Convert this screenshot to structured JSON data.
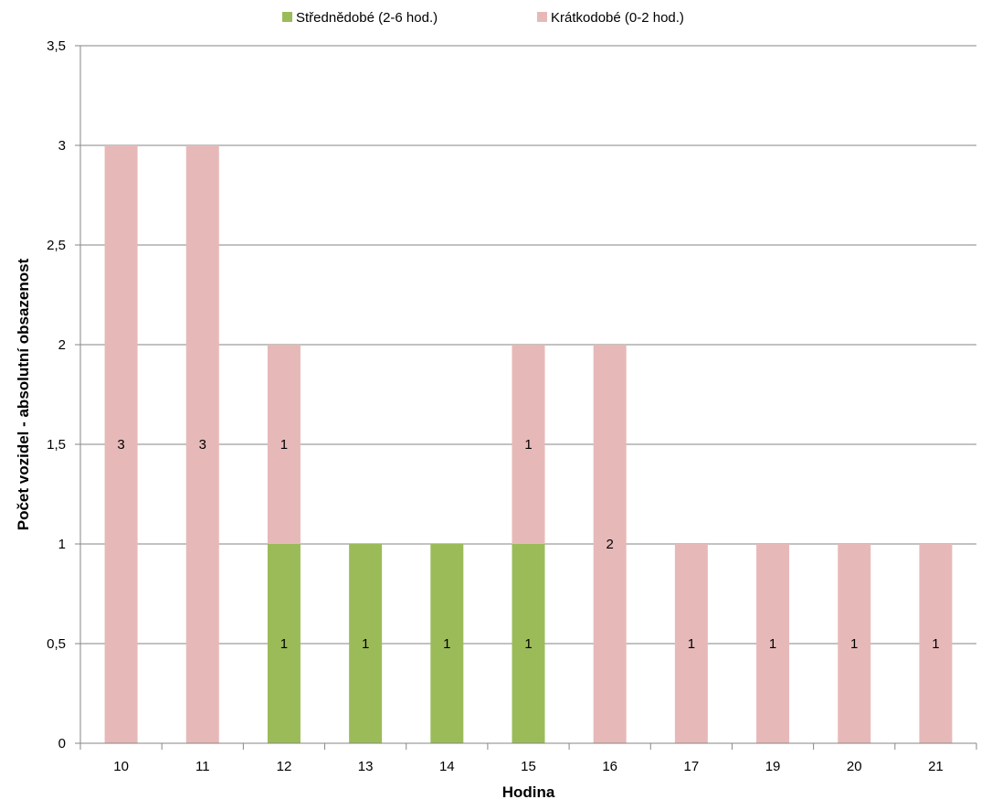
{
  "chart_data": {
    "type": "bar",
    "stacked": true,
    "categories": [
      "10",
      "11",
      "12",
      "13",
      "14",
      "15",
      "16",
      "17",
      "19",
      "20",
      "21"
    ],
    "series": [
      {
        "name": "Střednědobé (2-6 hod.)",
        "color": "#9bbb59",
        "values": [
          0,
          0,
          1,
          1,
          1,
          1,
          0,
          0,
          0,
          0,
          0
        ]
      },
      {
        "name": "Krátkodobé (0-2 hod.)",
        "color": "#e6b9b8",
        "values": [
          3,
          3,
          1,
          0,
          0,
          1,
          2,
          1,
          1,
          1,
          1
        ]
      }
    ],
    "xlabel": "Hodina",
    "ylabel": "Počet vozidel - absolutní obsazenost",
    "ylim": [
      0,
      3.5
    ],
    "yticks": [
      "0",
      "0,5",
      "1",
      "1,5",
      "2",
      "2,5",
      "3",
      "3,5"
    ],
    "grid": true,
    "legend_position": "top",
    "gridline_color": "#868686",
    "axis_color": "#868686"
  }
}
